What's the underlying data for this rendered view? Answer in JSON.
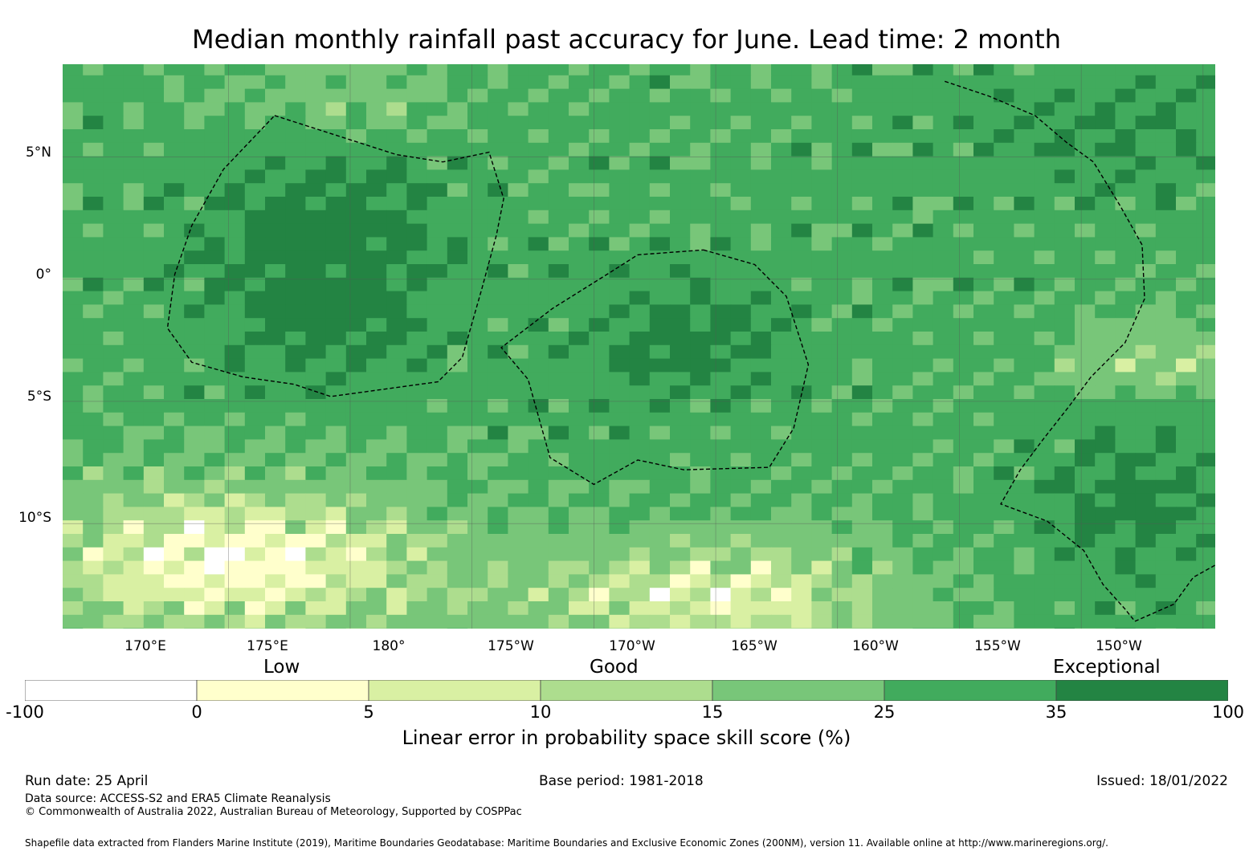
{
  "title": "Median monthly rainfall past accuracy for June. Lead time: 2 month",
  "map": {
    "lon_range": [
      163.2,
      210.5
    ],
    "lat_range": [
      -14.3,
      8.8
    ],
    "lat_ticks": [
      {
        "value": 5,
        "label": "5°N"
      },
      {
        "value": 0,
        "label": "0°"
      },
      {
        "value": -5,
        "label": "5°S"
      },
      {
        "value": -10,
        "label": "10°S"
      }
    ],
    "lon_ticks": [
      {
        "value": 170,
        "label": "170°E"
      },
      {
        "value": 175,
        "label": "175°E"
      },
      {
        "value": 180,
        "label": "180°"
      },
      {
        "value": 185,
        "label": "175°W"
      },
      {
        "value": 190,
        "label": "170°W"
      },
      {
        "value": 195,
        "label": "165°W"
      },
      {
        "value": 200,
        "label": "160°W"
      },
      {
        "value": 205,
        "label": "155°W"
      },
      {
        "value": 210,
        "label": "150°W"
      }
    ],
    "eez_boundaries": [
      {
        "name": "",
        "points": [
          [
            171.9,
            6.7
          ],
          [
            176.9,
            5.1
          ],
          [
            178.8,
            4.8
          ],
          [
            180.7,
            5.2
          ],
          [
            181.3,
            3.3
          ],
          [
            181.0,
            1.8
          ],
          [
            180.4,
            -0.4
          ],
          [
            179.6,
            -3.2
          ],
          [
            178.6,
            -4.2
          ],
          [
            174.2,
            -4.8
          ],
          [
            172.7,
            -4.3
          ],
          [
            170.6,
            -4.0
          ],
          [
            168.5,
            -3.4
          ],
          [
            167.5,
            -2.0
          ],
          [
            167.8,
            0.2
          ],
          [
            168.5,
            2.2
          ],
          [
            169.8,
            4.5
          ],
          [
            171.9,
            6.7
          ]
        ]
      },
      {
        "name": "",
        "points": [
          [
            189.5,
            1.2
          ],
          [
            191.6,
            0.6
          ],
          [
            192.9,
            -0.7
          ],
          [
            193.8,
            -3.5
          ],
          [
            193.2,
            -6.1
          ],
          [
            192.2,
            -7.7
          ],
          [
            188.7,
            -7.8
          ],
          [
            186.8,
            -7.4
          ],
          [
            185.0,
            -8.4
          ],
          [
            183.2,
            -7.3
          ],
          [
            182.3,
            -4.1
          ],
          [
            181.2,
            -2.8
          ],
          [
            183.3,
            -1.2
          ],
          [
            185.7,
            0.3
          ],
          [
            186.8,
            1.0
          ],
          [
            189.5,
            1.2
          ]
        ]
      },
      {
        "name": "",
        "points": [
          [
            199.4,
            8.1
          ],
          [
            201.2,
            7.5
          ],
          [
            203.1,
            6.7
          ],
          [
            204.4,
            5.6
          ],
          [
            205.5,
            4.8
          ],
          [
            206.6,
            3.0
          ],
          [
            207.5,
            1.4
          ],
          [
            207.6,
            -0.8
          ],
          [
            206.8,
            -2.6
          ],
          [
            205.4,
            -4.0
          ],
          [
            204.5,
            -5.2
          ],
          [
            203.4,
            -6.6
          ],
          [
            202.5,
            -7.8
          ],
          [
            201.7,
            -9.2
          ],
          [
            203.6,
            -9.9
          ],
          [
            205.1,
            -11.1
          ],
          [
            205.9,
            -12.5
          ],
          [
            206.8,
            -13.5
          ],
          [
            207.2,
            -14.0
          ],
          [
            208.8,
            -13.3
          ],
          [
            209.6,
            -12.2
          ],
          [
            210.5,
            -11.7
          ]
        ]
      }
    ]
  },
  "colorbar": {
    "category_labels": [
      "Low",
      "Good",
      "Exceptional"
    ],
    "bounds": [
      "-100",
      "0",
      "5",
      "10",
      "15",
      "25",
      "35",
      "100"
    ],
    "colors": [
      "#ffffff",
      "#ffffcc",
      "#d9f0a3",
      "#addd8e",
      "#78c679",
      "#41ab5d",
      "#238443"
    ],
    "caption": "Linear error in probability space skill score (%)"
  },
  "footer": {
    "run_date": "Run date: 25 April",
    "base_period": "Base period: 1981-2018",
    "issued": "Issued: 18/01/2022",
    "data_source": "Data source: ACCESS-S2 and ERA5 Climate Reanalysis",
    "copyright": "© Commonwealth of Australia 2022, Australian Bureau of Meteorology, Supported by COSPPac",
    "shapefile": "Shapefile data extracted from Flanders Marine Institute (2019), Maritime Boundaries Geodatabase: Maritime Boundaries and Exclusive Economic Zones (200NM), version 11. Available online at http://www.marineregions.org/."
  }
}
